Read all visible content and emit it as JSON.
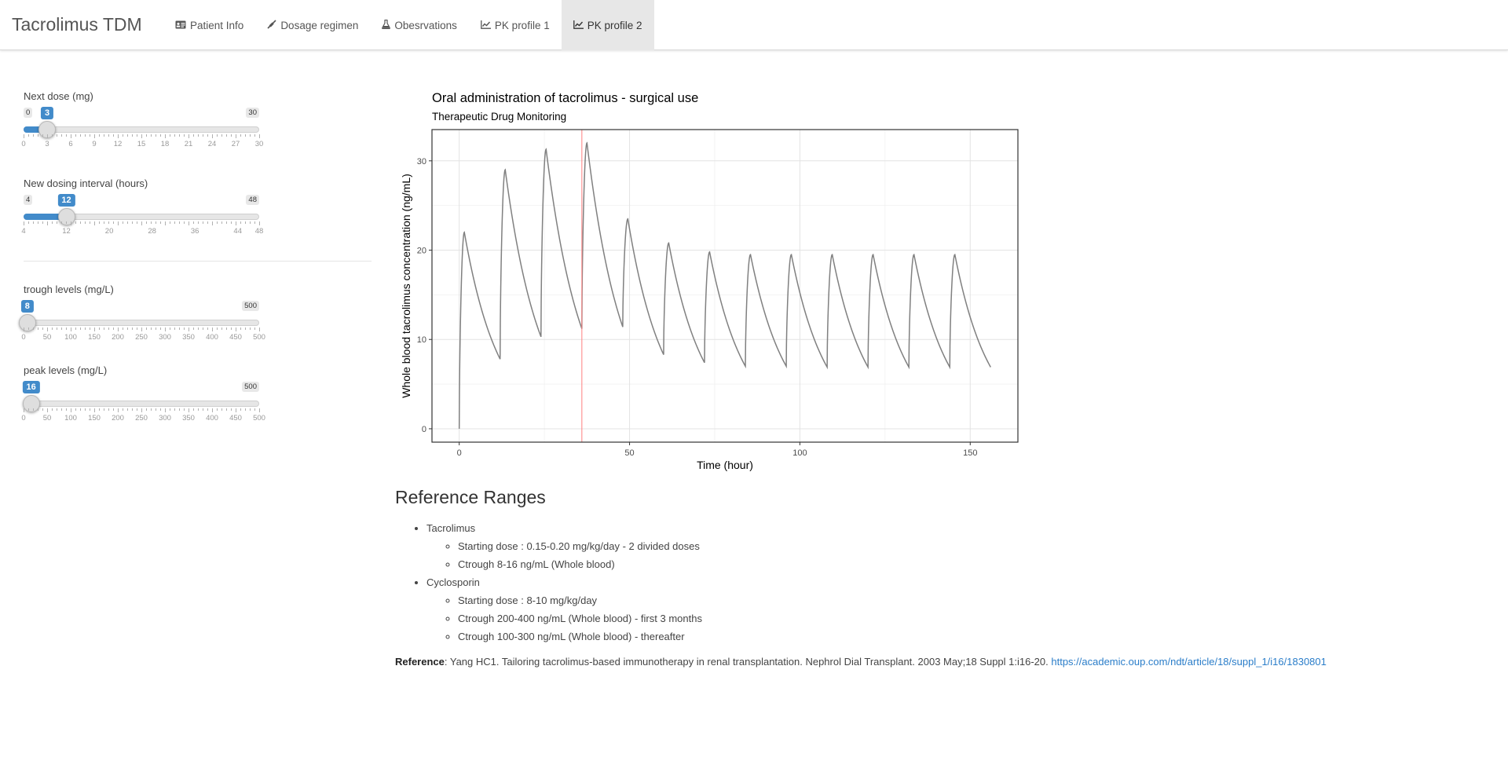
{
  "app_title": "Tacrolimus TDM",
  "tabs": [
    {
      "label": "Patient Info",
      "icon": "id-card-icon"
    },
    {
      "label": "Dosage regimen",
      "icon": "syringe-icon"
    },
    {
      "label": "Obesrvations",
      "icon": "flask-icon"
    },
    {
      "label": "PK profile 1",
      "icon": "line-chart-icon"
    },
    {
      "label": "PK profile 2",
      "icon": "line-chart-icon",
      "active": true
    }
  ],
  "sliders": [
    {
      "label": "Next dose (mg)",
      "min": 0,
      "max": 30,
      "value": 3,
      "ticks": [
        0,
        3,
        6,
        9,
        12,
        15,
        18,
        21,
        24,
        27,
        30
      ],
      "min_label": "0",
      "max_label": "30",
      "value_label": "3"
    },
    {
      "label": "New dosing interval (hours)",
      "min": 4,
      "max": 48,
      "value": 12,
      "ticks": [
        4,
        12,
        20,
        28,
        36,
        44,
        48
      ],
      "min_label": "4",
      "max_label": "48",
      "value_label": "12"
    },
    {
      "label": "trough levels (mg/L)",
      "min": 0,
      "max": 500,
      "value": 8,
      "ticks": [
        0,
        50,
        100,
        150,
        200,
        250,
        300,
        350,
        400,
        450,
        500
      ],
      "min_label": "",
      "max_label": "500",
      "value_label": "8"
    },
    {
      "label": "peak levels (mg/L)",
      "min": 0,
      "max": 500,
      "value": 16,
      "ticks": [
        0,
        50,
        100,
        150,
        200,
        250,
        300,
        350,
        400,
        450,
        500
      ],
      "min_label": "",
      "max_label": "500",
      "value_label": "16"
    }
  ],
  "chart_data": {
    "type": "line",
    "title": "Oral administration of tacrolimus - surgical use",
    "subtitle": "Therapeutic Drug Monitoring",
    "xlabel": "Time (hour)",
    "ylabel": "Whole blood tacrolimus concentration (ng/mL)",
    "xlim": [
      -8,
      164
    ],
    "ylim": [
      -1.5,
      33.5
    ],
    "xticks": [
      0,
      50,
      100,
      150
    ],
    "yticks": [
      0,
      10,
      20,
      30
    ],
    "grid": true,
    "vline_x": 36,
    "line_color": "#808080",
    "vline_color": "#ff8080",
    "doses": [
      {
        "start": 0,
        "peak": 22,
        "trough": 7.8
      },
      {
        "start": 12,
        "peak": 29,
        "trough": 10.3
      },
      {
        "start": 24,
        "peak": 31.3,
        "trough": 11.2
      },
      {
        "start": 36,
        "peak": 32,
        "trough": 11.4
      },
      {
        "start": 48,
        "peak": 23.5,
        "trough": 8.3
      },
      {
        "start": 60,
        "peak": 20.8,
        "trough": 7.4
      },
      {
        "start": 72,
        "peak": 19.8,
        "trough": 7.0
      },
      {
        "start": 84,
        "peak": 19.5,
        "trough": 7.0
      },
      {
        "start": 96,
        "peak": 19.5,
        "trough": 6.9
      },
      {
        "start": 108,
        "peak": 19.5,
        "trough": 6.9
      },
      {
        "start": 120,
        "peak": 19.5,
        "trough": 6.9
      },
      {
        "start": 132,
        "peak": 19.5,
        "trough": 6.9
      },
      {
        "start": 144,
        "peak": 19.5,
        "trough": 6.9
      }
    ]
  },
  "reference": {
    "heading": "Reference Ranges",
    "groups": [
      {
        "name": "Tacrolimus",
        "items": [
          "Starting dose : 0.15-0.20 mg/kg/day - 2 divided doses",
          "Ctrough 8-16 ng/mL (Whole blood)"
        ]
      },
      {
        "name": "Cyclosporin",
        "items": [
          "Starting dose : 8-10 mg/kg/day",
          "Ctrough 200-400 ng/mL (Whole blood) - first 3 months",
          "Ctrough 100-300 ng/mL (Whole blood) - thereafter"
        ]
      }
    ],
    "citation_label": "Reference",
    "citation_text": ": Yang HC1. Tailoring tacrolimus-based immunotherapy in renal transplantation. Nephrol Dial Transplant. 2003 May;18 Suppl 1:i16-20. ",
    "citation_link": "https://academic.oup.com/ndt/article/18/suppl_1/i16/1830801"
  }
}
